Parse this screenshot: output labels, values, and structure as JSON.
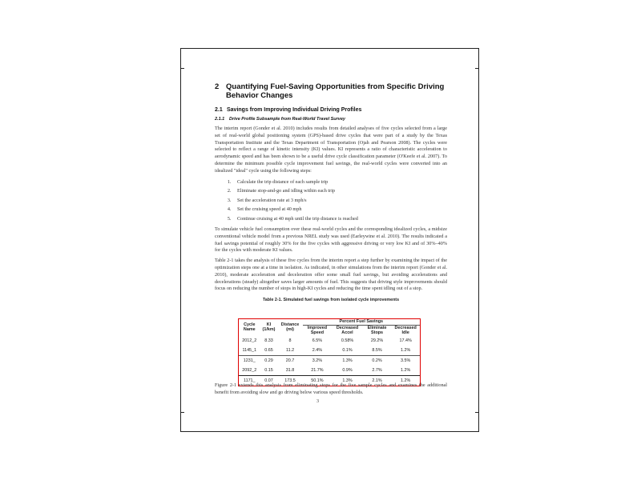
{
  "section": {
    "number": "2",
    "title": "Quantifying Fuel-Saving Opportunities from Specific Driving Behavior Changes"
  },
  "subsection": {
    "number": "2.1",
    "title": "Savings from Improving Individual Driving Profiles"
  },
  "subsubsection": {
    "number": "2.1.1",
    "title": "Drive Profile Subsample from Real-World Travel Survey"
  },
  "para1": "The interim report (Gonder et al. 2010) includes results from detailed analyses of five cycles selected from a large set of real-world global positioning system (GPS)-based drive cycles that were part of a study by the Texas Transportation Institute and the Texas Department of Transportation (Ojah and Pearson 2008). The cycles were selected to reflect a range of kinetic intensity (KI) values. KI represents a ratio of characteristic acceleration to aerodynamic speed and has been shown to be a useful drive cycle classification parameter (O'Keefe et al. 2007). To determine the minimum possible cycle improvement fuel savings, the real-world cycles were converted into an idealized \"ideal\" cycle using the following steps:",
  "steps": [
    "Calculate the trip distance of each sample trip",
    "Eliminate stop-and-go and idling within each trip",
    "Set the acceleration rate at 3 mph/s",
    "Set the cruising speed at 40 mph",
    "Continue cruising at 40 mph until the trip distance is reached"
  ],
  "para2": "To simulate vehicle fuel consumption over these real-world cycles and the corresponding idealized cycles, a midsize conventional vehicle model from a previous NREL study was used (Earleywine et al. 2010). The results indicated a fuel savings potential of roughly 30% for the five cycles with aggressive driving or very low KI and of 30%–40% for the cycles with moderate KI values.",
  "para3": "Table 2-1 takes the analysis of these five cycles from the interim report a step further by examining the impact of the optimization steps one at a time in isolation. As indicated, in other simulations from the interim report (Gonder et al. 2010), moderate acceleration and deceleration offer some small fuel savings, but avoiding accelerations and decelerations (steady) altogether saves larger amounts of fuel. This suggests that driving style improvements should focus on reducing the number of stops in high-KI cycles and reducing the time spent idling out of a stop.",
  "table": {
    "caption": "Table 2-1. Simulated fuel savings from isolated cycle improvements",
    "group_header": "Percent Fuel Savings",
    "headers": [
      "Cycle Name",
      "KI (1/km)",
      "Distance (mi)",
      "Improved Speed",
      "Decreased Accel",
      "Eliminate Stops",
      "Decreased Idle"
    ],
    "rows": [
      [
        "2012_2",
        "8.33",
        "8",
        "6.5%",
        "0.58%",
        "29.2%",
        "17.4%"
      ],
      [
        "1145_1",
        "0.65",
        "11.2",
        "2.4%",
        "0.1%",
        "8.5%",
        "1.2%"
      ],
      [
        "1231_",
        "0.29",
        "20.7",
        "3.2%",
        "1.3%",
        "0.2%",
        "3.5%"
      ],
      [
        "2092_2",
        "0.15",
        "31.8",
        "21.7%",
        "0.9%",
        "2.7%",
        "1.2%"
      ],
      [
        "1171_",
        "0.07",
        "173.5",
        "50.1%",
        "1.3%",
        "2.1%",
        "1.2%"
      ]
    ]
  },
  "para4": "Figure 2-1 extends this analysis from eliminating stops for the five sample cycles and examines the additional benefit from avoiding slow and go driving below various speed thresholds.",
  "page_number": "3",
  "colors": {
    "highlight_box": "#e00000"
  }
}
